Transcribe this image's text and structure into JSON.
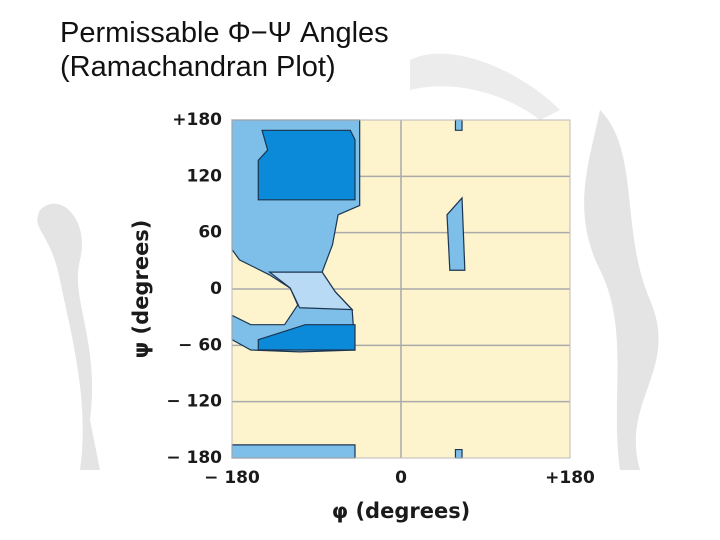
{
  "chart_data": {
    "type": "ramachandran",
    "title_lines": [
      "Permissable Φ−Ψ Angles",
      "(Ramachandran Plot)"
    ],
    "xlabel": "φ (degrees)",
    "ylabel": "ψ (degrees)",
    "xlim": [
      -180,
      180
    ],
    "ylim": [
      -180,
      180
    ],
    "xticks": [
      {
        "value": -180,
        "label": "− 180"
      },
      0,
      {
        "value": 180,
        "label": "+180"
      }
    ],
    "yticks": [
      {
        "value": 180,
        "label": "+180"
      },
      120,
      60,
      0,
      {
        "value": -60,
        "label": "− 60"
      },
      {
        "value": -120,
        "label": "− 120"
      },
      {
        "value": -180,
        "label": "− 180"
      }
    ],
    "background": "#fdf3cc",
    "grid_color": "#aaaaaa",
    "regions": [
      {
        "color": "#7dbfe8",
        "points": [
          [
            -180,
            180
          ],
          [
            -44,
            180
          ],
          [
            -44,
            89
          ],
          [
            -67,
            79
          ],
          [
            -73,
            47
          ],
          [
            -84,
            18
          ],
          [
            -70,
            -3
          ],
          [
            -52,
            -22
          ],
          [
            -49,
            -65
          ],
          [
            -108,
            -67
          ],
          [
            -160,
            -65
          ],
          [
            -180,
            -54
          ],
          [
            -180,
            -28
          ],
          [
            -160,
            -38
          ],
          [
            -124,
            -38
          ],
          [
            -110,
            -17
          ],
          [
            -118,
            1
          ],
          [
            -140,
            15
          ],
          [
            -172,
            31
          ],
          [
            -180,
            42
          ]
        ]
      },
      {
        "color": "#b8daf5",
        "points": [
          [
            -140,
            18
          ],
          [
            -84,
            18
          ],
          [
            -70,
            -3
          ],
          [
            -52,
            -22
          ],
          [
            -108,
            -20
          ],
          [
            -118,
            1
          ]
        ]
      },
      {
        "color": "#0a8ad8",
        "points": [
          [
            -148,
            169
          ],
          [
            -54,
            169
          ],
          [
            -49,
            159
          ],
          [
            -49,
            95
          ],
          [
            -152,
            95
          ],
          [
            -152,
            137
          ],
          [
            -142,
            148
          ]
        ]
      },
      {
        "color": "#0a8ad8",
        "points": [
          [
            -152,
            -54
          ],
          [
            -102,
            -38
          ],
          [
            -49,
            -38
          ],
          [
            -49,
            -65
          ],
          [
            -152,
            -65
          ]
        ]
      },
      {
        "color": "#7dbfe8",
        "points": [
          [
            -180,
            -166
          ],
          [
            -49,
            -166
          ],
          [
            -49,
            -180
          ],
          [
            -180,
            -180
          ]
        ]
      },
      {
        "color": "#7dbfe8",
        "points": [
          [
            49,
            79
          ],
          [
            65,
            97
          ],
          [
            68,
            20
          ],
          [
            52,
            20
          ]
        ]
      },
      {
        "color": "#7dbfe8",
        "points": [
          [
            58,
            180
          ],
          [
            65,
            180
          ],
          [
            65,
            169
          ],
          [
            58,
            169
          ]
        ]
      },
      {
        "color": "#7dbfe8",
        "points": [
          [
            58,
            -171
          ],
          [
            65,
            -171
          ],
          [
            65,
            -180
          ],
          [
            58,
            -180
          ]
        ]
      }
    ]
  }
}
